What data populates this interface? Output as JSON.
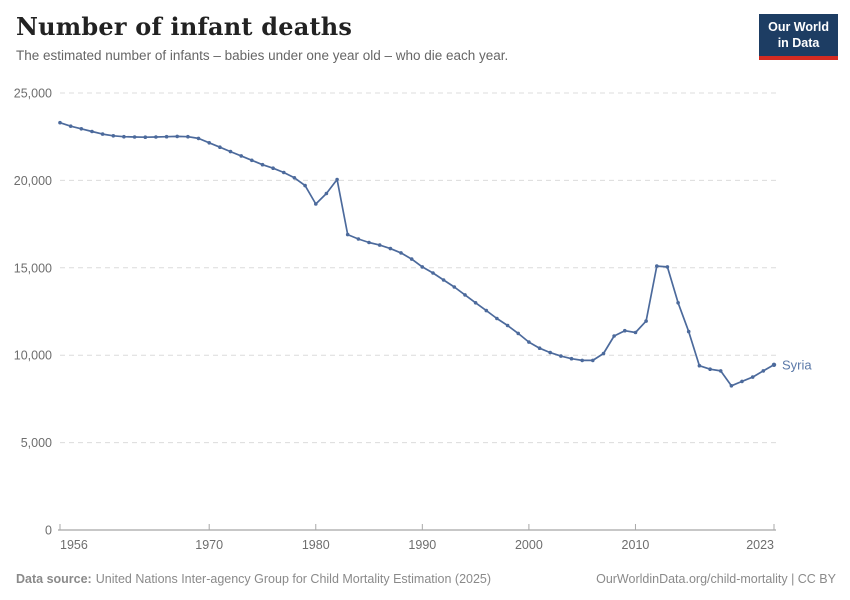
{
  "header": {
    "title": "Number of infant deaths",
    "subtitle": "The estimated number of infants – babies under one year old – who die each year."
  },
  "logo": {
    "line1": "Our World",
    "line2": "in Data",
    "bg_color": "#1d3d63",
    "accent_color": "#d42b21"
  },
  "chart_data": {
    "type": "line",
    "title": "Number of infant deaths",
    "xlabel": "",
    "ylabel": "",
    "ylim": [
      0,
      25000
    ],
    "yticks": [
      0,
      5000,
      10000,
      15000,
      20000,
      25000
    ],
    "ytick_labels": [
      "0",
      "5,000",
      "10,000",
      "15,000",
      "20,000",
      "25,000"
    ],
    "xticks": [
      1956,
      1970,
      1980,
      1990,
      2000,
      2010,
      2023
    ],
    "xtick_labels": [
      "1956",
      "1970",
      "1980",
      "1990",
      "2000",
      "2010",
      "2023"
    ],
    "grid": "horizontal-dashed",
    "legend_position": "end-of-line-label",
    "x": [
      1956,
      1957,
      1958,
      1959,
      1960,
      1961,
      1962,
      1963,
      1964,
      1965,
      1966,
      1967,
      1968,
      1969,
      1970,
      1971,
      1972,
      1973,
      1974,
      1975,
      1976,
      1977,
      1978,
      1979,
      1980,
      1981,
      1982,
      1983,
      1984,
      1985,
      1986,
      1987,
      1988,
      1989,
      1990,
      1991,
      1992,
      1993,
      1994,
      1995,
      1996,
      1997,
      1998,
      1999,
      2000,
      2001,
      2002,
      2003,
      2004,
      2005,
      2006,
      2007,
      2008,
      2009,
      2010,
      2011,
      2012,
      2013,
      2014,
      2015,
      2016,
      2017,
      2018,
      2019,
      2020,
      2021,
      2022,
      2023
    ],
    "series": [
      {
        "name": "Syria",
        "color": "#4c6a9c",
        "label_color": "#5b79a8",
        "values": [
          23300,
          23100,
          22950,
          22800,
          22650,
          22550,
          22500,
          22480,
          22470,
          22480,
          22500,
          22520,
          22500,
          22400,
          22150,
          21900,
          21650,
          21400,
          21150,
          20900,
          20700,
          20450,
          20150,
          19700,
          18650,
          19250,
          20050,
          16900,
          16650,
          16450,
          16300,
          16100,
          15850,
          15500,
          15050,
          14700,
          14300,
          13900,
          13450,
          13000,
          12550,
          12100,
          11700,
          11250,
          10750,
          10400,
          10150,
          9950,
          9800,
          9700,
          9700,
          10100,
          11100,
          11400,
          11300,
          11950,
          15100,
          15050,
          13000,
          11350,
          9400,
          9200,
          9100,
          8250,
          8500,
          8750,
          9100,
          9450
        ]
      }
    ],
    "colors": {
      "gridline": "#dcdcdc",
      "axis_line": "#8f8f8f",
      "tick_label": "#6e6e6e"
    }
  },
  "footer": {
    "source_label": "Data source:",
    "source_text": "United Nations Inter-agency Group for Child Mortality Estimation (2025)",
    "attribution": "OurWorldinData.org/child-mortality | CC BY"
  }
}
